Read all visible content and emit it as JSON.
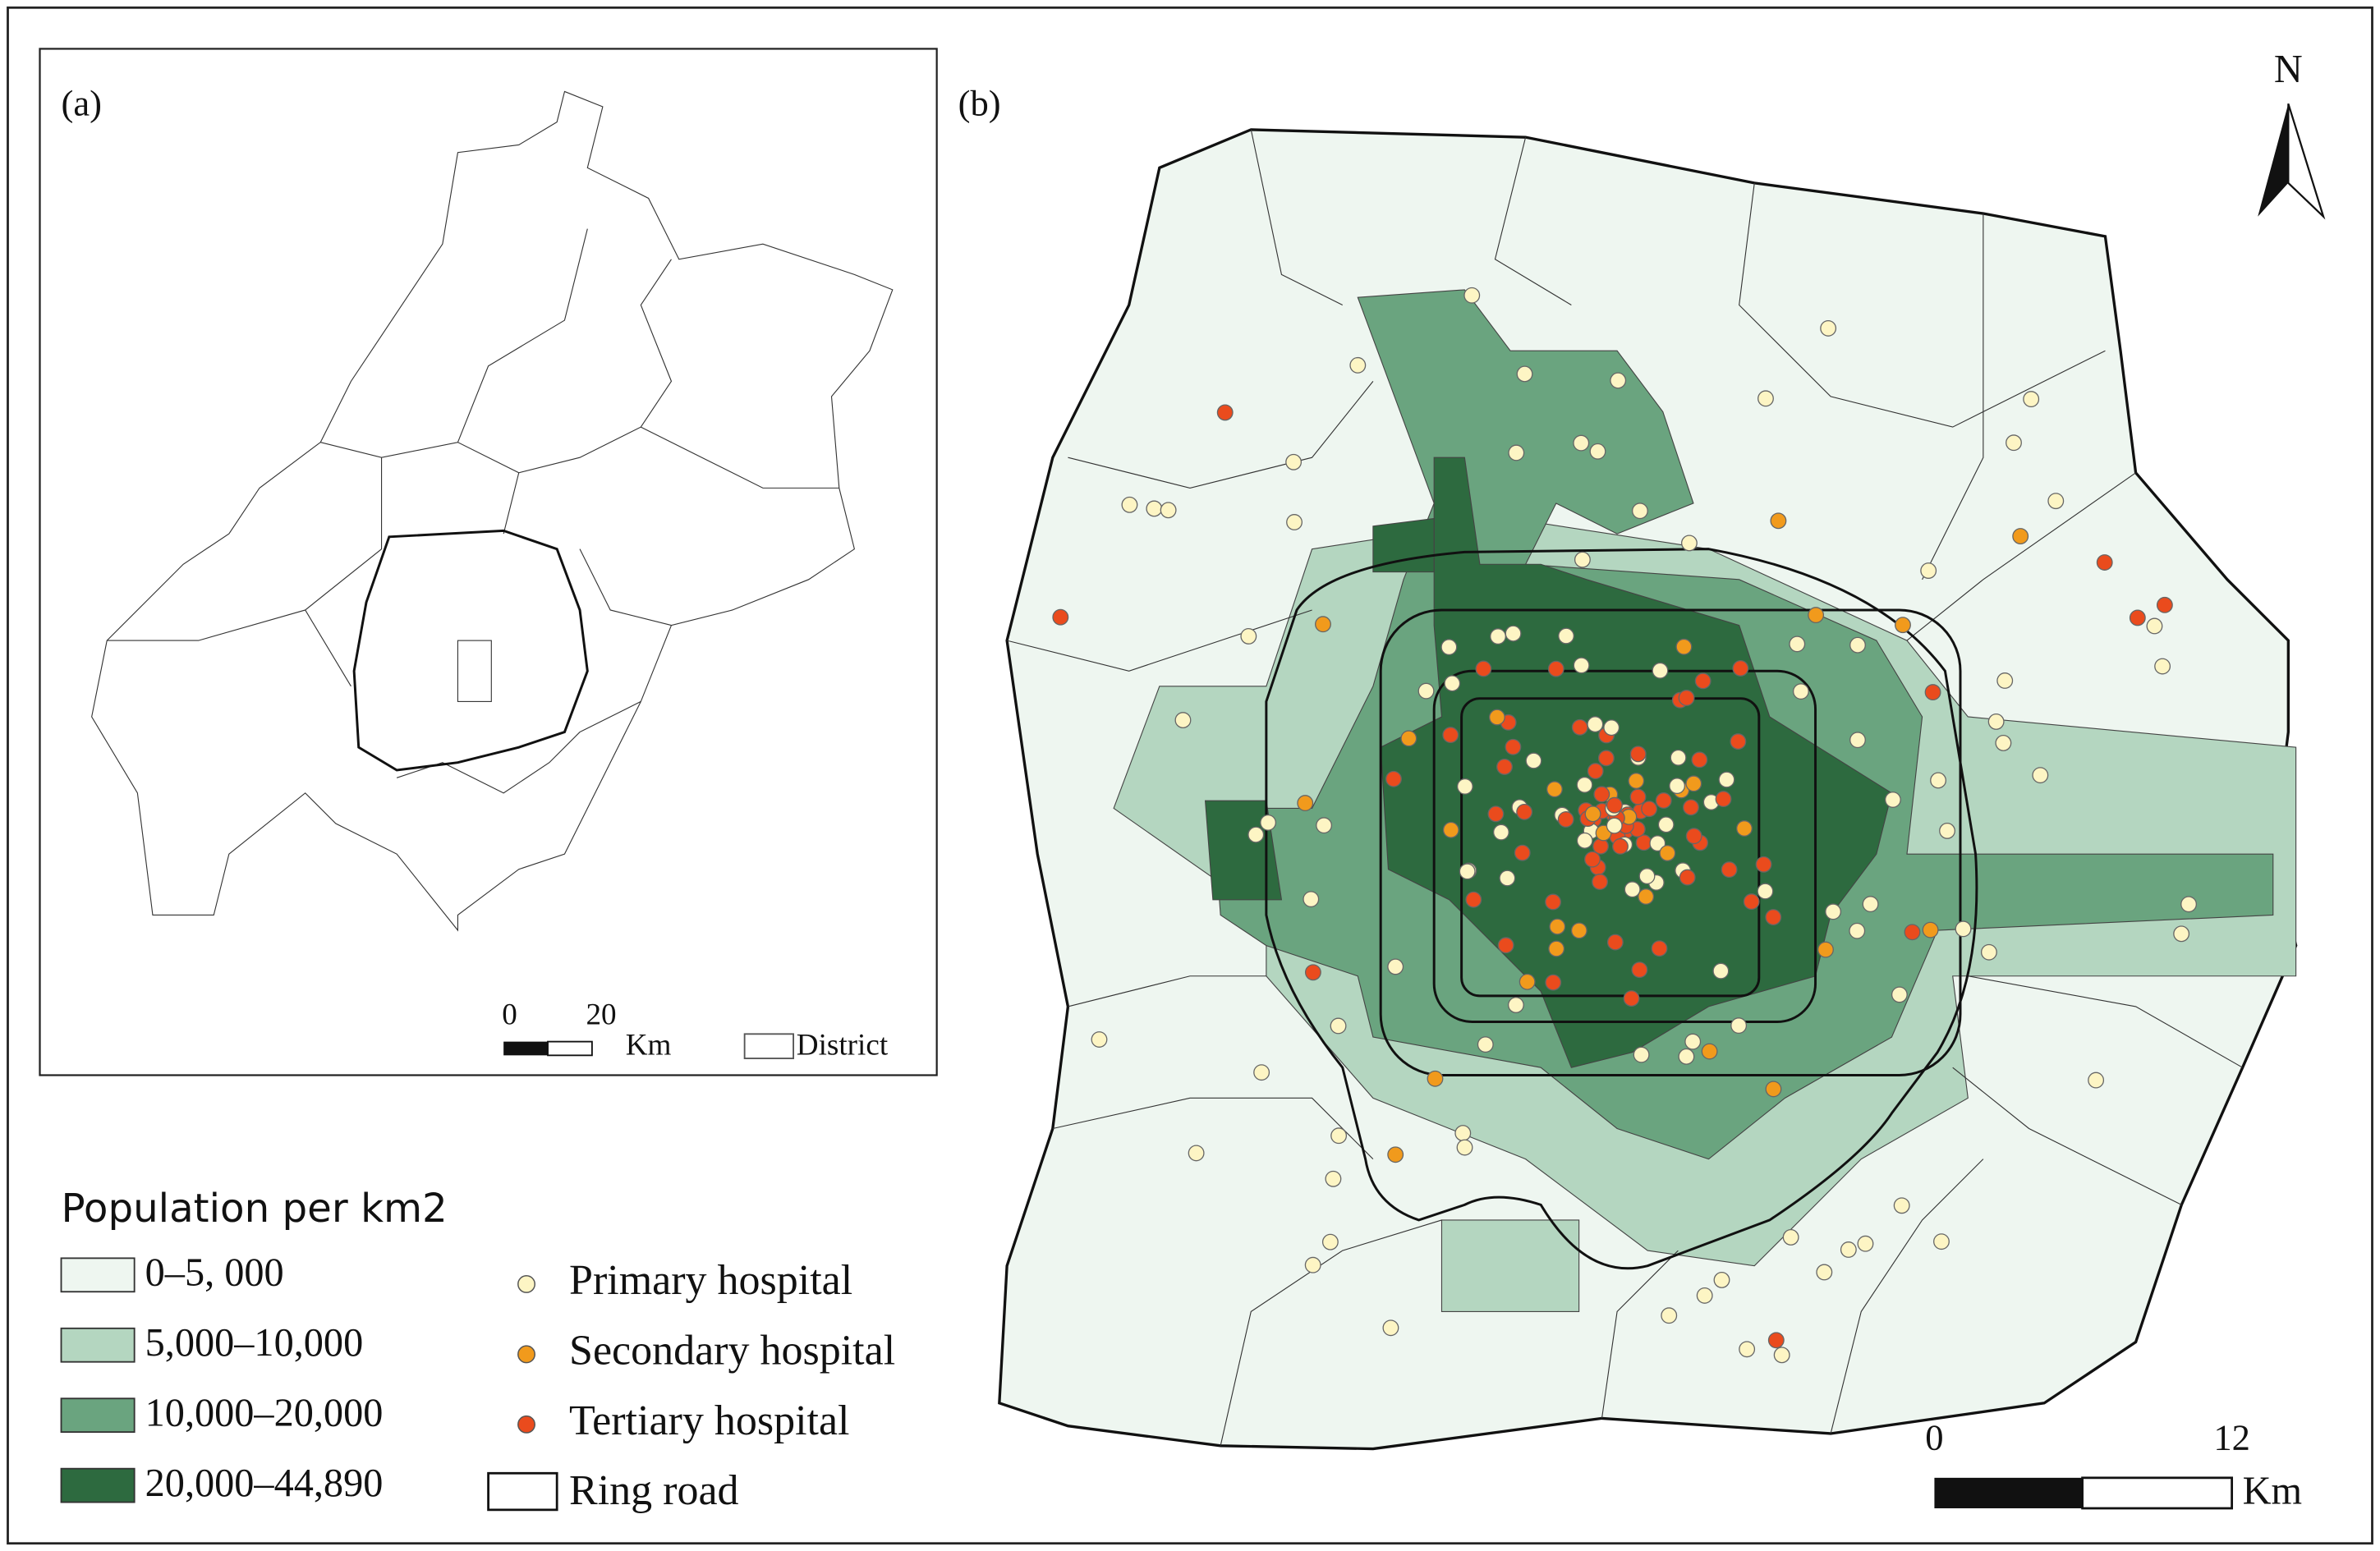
{
  "panel_a": {
    "label": "(a)",
    "scale_bar": {
      "start": "0",
      "end": "20",
      "unit": "Km"
    },
    "district_legend": "District"
  },
  "panel_b": {
    "label": "(b)",
    "north": "N",
    "scale_bar": {
      "start": "0",
      "end": "12",
      "unit": "Km"
    }
  },
  "legend": {
    "title": "Population per km2",
    "classes": [
      {
        "label": "0–5, 000",
        "color": "#eef6f0"
      },
      {
        "label": "5,000–10,000",
        "color": "#b4d6c0"
      },
      {
        "label": "10,000–20,000",
        "color": "#6aa47f"
      },
      {
        "label": "20,000–44,890",
        "color": "#2d6a3f"
      }
    ],
    "hospitals": [
      {
        "label": "Primary hospital",
        "color": "#fdf5c4"
      },
      {
        "label": "Secondary hospital",
        "color": "#f19a1c"
      },
      {
        "label": "Tertiary hospital",
        "color": "#ea4b1d"
      }
    ],
    "ring_road": "Ring road"
  }
}
